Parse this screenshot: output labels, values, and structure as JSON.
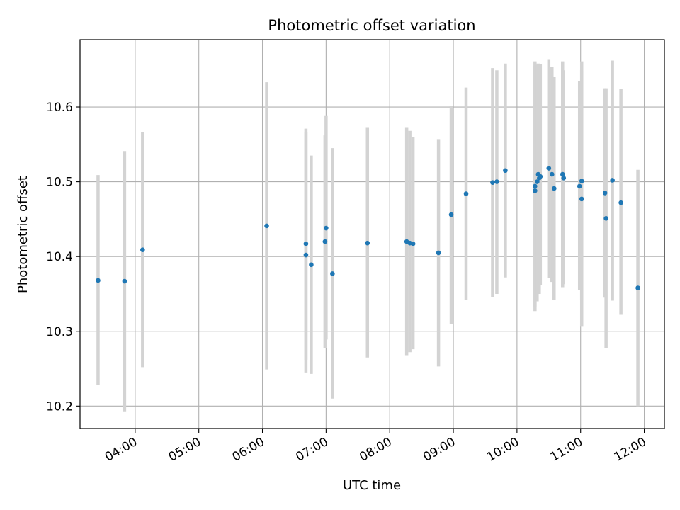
{
  "chart_data": {
    "type": "scatter",
    "title": "Photometric offset variation",
    "xlabel": "UTC time",
    "ylabel": "Photometric offset",
    "x_tick_labels": [
      "04:00",
      "05:00",
      "06:00",
      "07:00",
      "08:00",
      "09:00",
      "10:00",
      "11:00",
      "12:00"
    ],
    "y_tick_labels": [
      "10.2",
      "10.3",
      "10.4",
      "10.5",
      "10.6"
    ],
    "xlim": [
      "03:08",
      "12:19"
    ],
    "ylim": [
      10.17,
      10.69
    ],
    "grid": true,
    "colors": {
      "points": "#1f77b4",
      "error_bars": "#d3d3d3",
      "grid": "#b0b0b0"
    },
    "points": [
      {
        "x": "03:25",
        "y": 10.368,
        "low": 10.228,
        "high": 10.509
      },
      {
        "x": "03:50",
        "y": 10.367,
        "low": 10.193,
        "high": 10.541
      },
      {
        "x": "04:07",
        "y": 10.409,
        "low": 10.252,
        "high": 10.566
      },
      {
        "x": "06:04",
        "y": 10.441,
        "low": 10.249,
        "high": 10.633
      },
      {
        "x": "06:41",
        "y": 10.402,
        "low": 10.245,
        "high": 10.571
      },
      {
        "x": "06:41",
        "y": 10.417,
        "low": 10.262,
        "high": 10.566
      },
      {
        "x": "06:46",
        "y": 10.389,
        "low": 10.243,
        "high": 10.535
      },
      {
        "x": "06:59",
        "y": 10.42,
        "low": 10.278,
        "high": 10.562
      },
      {
        "x": "07:00",
        "y": 10.438,
        "low": 10.289,
        "high": 10.588
      },
      {
        "x": "07:06",
        "y": 10.377,
        "low": 10.21,
        "high": 10.545
      },
      {
        "x": "07:39",
        "y": 10.418,
        "low": 10.265,
        "high": 10.573
      },
      {
        "x": "08:16",
        "y": 10.42,
        "low": 10.268,
        "high": 10.573
      },
      {
        "x": "08:19",
        "y": 10.418,
        "low": 10.272,
        "high": 10.568
      },
      {
        "x": "08:22",
        "y": 10.417,
        "low": 10.276,
        "high": 10.56
      },
      {
        "x": "08:46",
        "y": 10.405,
        "low": 10.253,
        "high": 10.557
      },
      {
        "x": "08:58",
        "y": 10.456,
        "low": 10.31,
        "high": 10.601
      },
      {
        "x": "09:12",
        "y": 10.484,
        "low": 10.342,
        "high": 10.626
      },
      {
        "x": "09:37",
        "y": 10.499,
        "low": 10.346,
        "high": 10.652
      },
      {
        "x": "09:41",
        "y": 10.5,
        "low": 10.35,
        "high": 10.649
      },
      {
        "x": "09:49",
        "y": 10.515,
        "low": 10.372,
        "high": 10.658
      },
      {
        "x": "10:17",
        "y": 10.488,
        "low": 10.327,
        "high": 10.661
      },
      {
        "x": "10:17",
        "y": 10.494,
        "low": 10.333,
        "high": 10.655
      },
      {
        "x": "10:19",
        "y": 10.5,
        "low": 10.34,
        "high": 10.656
      },
      {
        "x": "10:20",
        "y": 10.51,
        "low": 10.355,
        "high": 10.658
      },
      {
        "x": "10:21",
        "y": 10.505,
        "low": 10.35,
        "high": 10.657
      },
      {
        "x": "10:22",
        "y": 10.507,
        "low": 10.362,
        "high": 10.657
      },
      {
        "x": "10:30",
        "y": 10.518,
        "low": 10.371,
        "high": 10.664
      },
      {
        "x": "10:33",
        "y": 10.51,
        "low": 10.366,
        "high": 10.654
      },
      {
        "x": "10:35",
        "y": 10.491,
        "low": 10.342,
        "high": 10.64
      },
      {
        "x": "10:43",
        "y": 10.51,
        "low": 10.359,
        "high": 10.661
      },
      {
        "x": "10:44",
        "y": 10.505,
        "low": 10.363,
        "high": 10.649
      },
      {
        "x": "10:59",
        "y": 10.494,
        "low": 10.355,
        "high": 10.635
      },
      {
        "x": "11:01",
        "y": 10.501,
        "low": 10.342,
        "high": 10.661
      },
      {
        "x": "11:01",
        "y": 10.477,
        "low": 10.307,
        "high": 10.649
      },
      {
        "x": "11:23",
        "y": 10.485,
        "low": 10.345,
        "high": 10.625
      },
      {
        "x": "11:24",
        "y": 10.451,
        "low": 10.278,
        "high": 10.625
      },
      {
        "x": "11:30",
        "y": 10.502,
        "low": 10.341,
        "high": 10.662
      },
      {
        "x": "11:38",
        "y": 10.472,
        "low": 10.322,
        "high": 10.624
      },
      {
        "x": "11:54",
        "y": 10.358,
        "low": 10.2,
        "high": 10.516
      }
    ]
  }
}
